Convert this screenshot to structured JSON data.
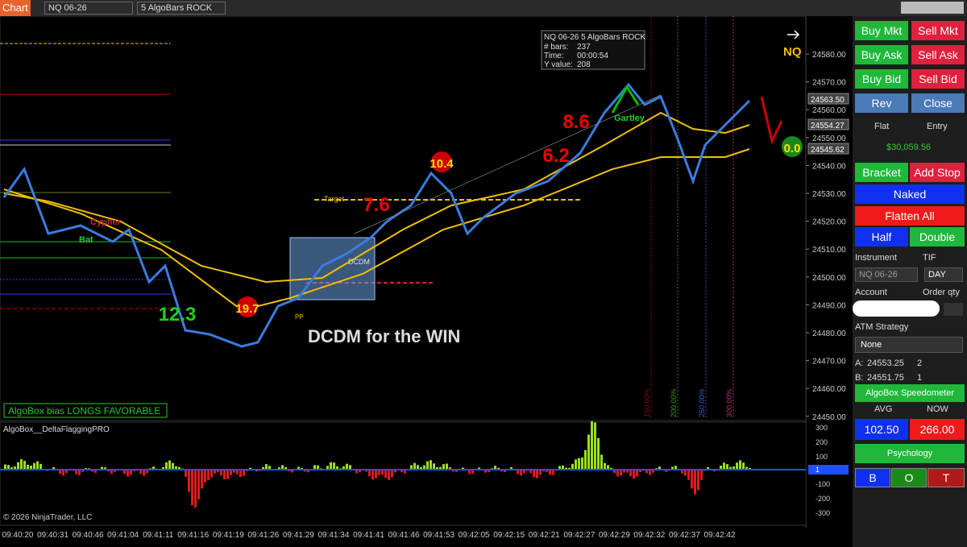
{
  "toolbar": {
    "title": "Chart",
    "instrument": "NQ 06-26",
    "bars": "5 AlgoBars ROCK"
  },
  "tooltip": {
    "header": "NQ 06-26 5 AlgoBars ROCK",
    "rows": [
      [
        "# bars:",
        "237"
      ],
      [
        "Time:",
        "00:00:54"
      ],
      [
        "Y value:",
        "208"
      ]
    ]
  },
  "symbol": "NQ",
  "price_axis": [
    "24580.00",
    "24570.00",
    "24560.00",
    "24550.00",
    "24540.00",
    "24530.00",
    "24520.00",
    "24510.00",
    "24500.00",
    "24490.00",
    "24480.00",
    "24470.00",
    "24460.00",
    "24450.00"
  ],
  "price_markers": [
    "24563.50",
    "24554.27",
    "24545.62"
  ],
  "signals": [
    "12.3",
    "19.7",
    "7.6",
    "10.4",
    "6.2",
    "8.6",
    "0.0"
  ],
  "annotations": {
    "target": "Target",
    "pattern": "DCDM",
    "pivot": "PP",
    "bat": "Bat",
    "cypher": "Cypher",
    "gartley": "Gartley",
    "headline": "DCDM for the WIN",
    "bias": "AlgoBox bias LONGS FAVORABLE"
  },
  "fib_levels": [
    "150.00%",
    "200.00%",
    "250.00%",
    "300.00%"
  ],
  "indicator": {
    "name": "AlgoBox__DeltaFlaggingPRO",
    "axis": [
      "300",
      "200",
      "100",
      "1",
      "-100",
      "-200",
      "-300"
    ]
  },
  "copyright": "© 2026 NinjaTrader, LLC",
  "time_axis": [
    "09:40:20",
    "09:40:31",
    "09:40:46",
    "09:41:04",
    "09:41:11",
    "09:41:16",
    "09:41:19",
    "09:41:26",
    "09:41:29",
    "09:41:34",
    "09:41:41",
    "09:41:46",
    "09:41:53",
    "09:42:05",
    "09:42:15",
    "09:42:21",
    "09:42:27",
    "09:42:29",
    "09:42:32",
    "09:42:37",
    "09:42:42"
  ],
  "panel": {
    "buy_mkt": "Buy Mkt",
    "sell_mkt": "Sell Mkt",
    "buy_ask": "Buy Ask",
    "sell_ask": "Sell Ask",
    "buy_bid": "Buy Bid",
    "sell_bid": "Sell Bid",
    "rev": "Rev",
    "close": "Close",
    "flat": "Flat",
    "entry": "Entry",
    "pnl": "$30,059.56",
    "bracket": "Bracket",
    "add_stop": "Add Stop",
    "naked": "Naked",
    "flatten_all": "Flatten All",
    "half": "Half",
    "double": "Double",
    "instrument_label": "Instrument",
    "tif_label": "TIF",
    "instrument": "NQ 06-26",
    "tif": "DAY",
    "account_label": "Account",
    "qty_label": "Order qty",
    "atm_label": "ATM Strategy",
    "atm": "None",
    "a_label": "A:",
    "a_price": "24553.25",
    "a_qty": "2",
    "b_label": "B:",
    "b_price": "24551.75",
    "b_qty": "1",
    "speedometer": "AlgoBox Speedometer",
    "avg_label": "AVG",
    "now_label": "NOW",
    "avg": "102.50",
    "now": "266.00",
    "psychology": "Psychology",
    "b": "B",
    "o": "O",
    "t": "T"
  }
}
